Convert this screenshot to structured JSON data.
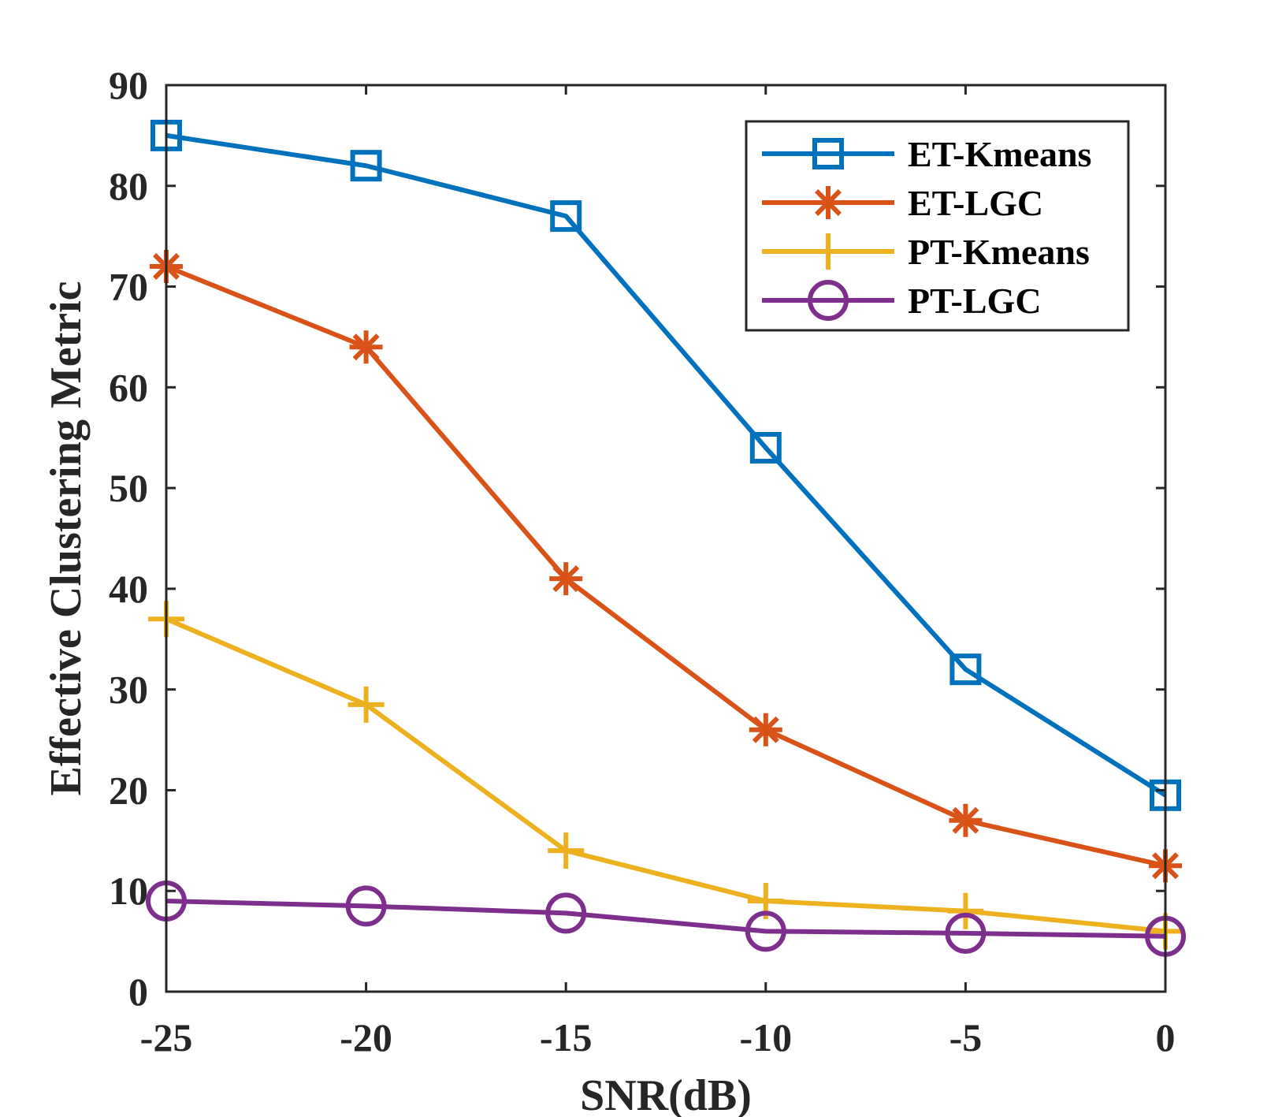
{
  "chart_data": {
    "type": "line",
    "title": "",
    "xlabel": "SNR(dB)",
    "ylabel": "Effective Clustering Metric",
    "x": [
      -25,
      -20,
      -15,
      -10,
      -5,
      0
    ],
    "xlim": [
      -25,
      0
    ],
    "ylim": [
      0,
      90
    ],
    "xticks": [
      -25,
      -20,
      -15,
      -10,
      -5,
      0
    ],
    "yticks": [
      0,
      10,
      20,
      30,
      40,
      50,
      60,
      70,
      80,
      90
    ],
    "grid": false,
    "legend_position": "top-right",
    "series": [
      {
        "name": "ET-Kmeans",
        "color": "#0072BD",
        "marker": "square",
        "values": [
          85,
          82,
          77,
          54,
          32,
          19.5
        ]
      },
      {
        "name": "ET-LGC",
        "color": "#D95319",
        "marker": "asterisk",
        "values": [
          72,
          64,
          41,
          26,
          17,
          12.5
        ]
      },
      {
        "name": "PT-Kmeans",
        "color": "#EDB120",
        "marker": "plus",
        "values": [
          37,
          28.5,
          14,
          9,
          8,
          6
        ]
      },
      {
        "name": "PT-LGC",
        "color": "#7E2F8E",
        "marker": "circle",
        "values": [
          9,
          8.5,
          7.8,
          6,
          5.8,
          5.5
        ]
      }
    ]
  }
}
